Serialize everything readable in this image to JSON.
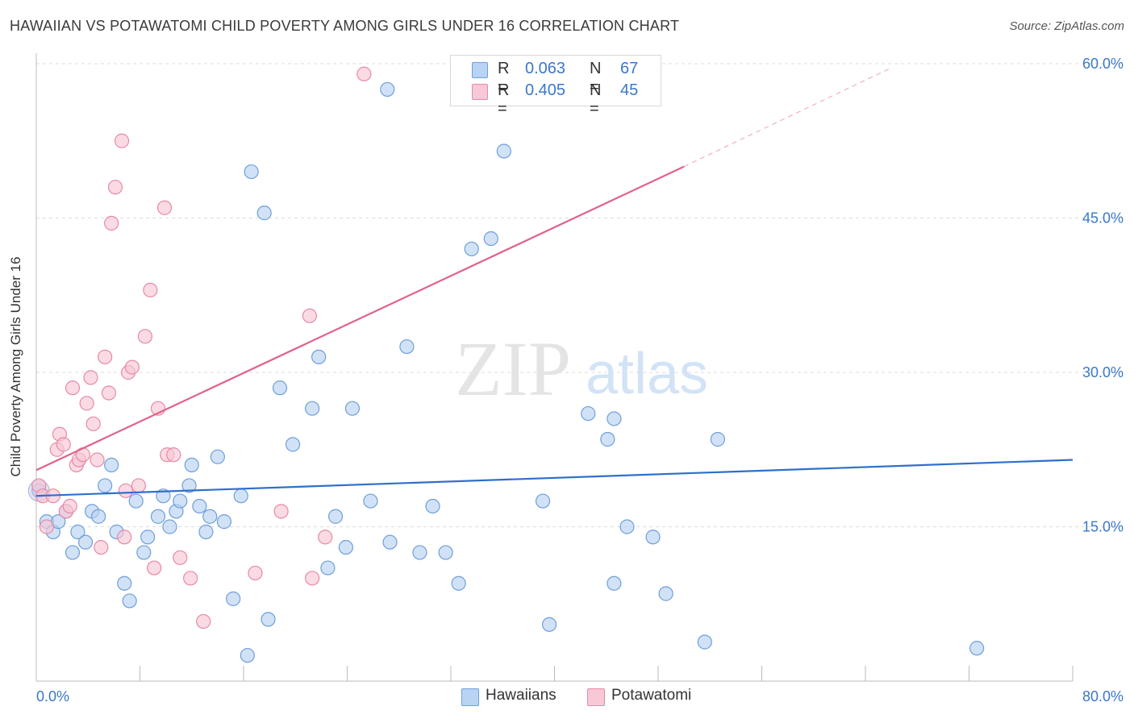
{
  "title": "HAWAIIAN VS POTAWATOMI CHILD POVERTY AMONG GIRLS UNDER 16 CORRELATION CHART",
  "source": "Source: ZipAtlas.com",
  "watermark": {
    "zip": "ZIP",
    "atlas": "atlas"
  },
  "legend": {
    "r_label": "R =",
    "n_label": "N =",
    "hawaiians": {
      "r": "0.063",
      "n": "67"
    },
    "potawatomi": {
      "r": "0.405",
      "n": "45"
    }
  },
  "bottom_legend": {
    "hawaiians": "Hawaiians",
    "potawatomi": "Potawatomi"
  },
  "colors": {
    "hawaiians_fill": "#b8d3f3",
    "hawaiians_stroke": "#6f9fd8",
    "hawaiians_line": "#2f6fcc",
    "potawatomi_fill": "#f8c8d6",
    "potawatomi_stroke": "#e889a6",
    "potawatomi_line": "#e0628a",
    "tick_label": "#3a78c9"
  },
  "chart_data": {
    "type": "scatter",
    "title": "HAWAIIAN VS POTAWATOMI CHILD POVERTY AMONG GIRLS UNDER 16 CORRELATION CHART",
    "xlabel": "",
    "ylabel": "Child Poverty Among Girls Under 16",
    "xlim": [
      0,
      80
    ],
    "ylim": [
      0,
      60
    ],
    "x_tick_labels": [
      {
        "value": 0,
        "label": "0.0%"
      },
      {
        "value": 80,
        "label": "80.0%"
      }
    ],
    "y_tick_labels": [
      {
        "value": 15,
        "label": "15.0%"
      },
      {
        "value": 30,
        "label": "30.0%"
      },
      {
        "value": 45,
        "label": "45.0%"
      },
      {
        "value": 60,
        "label": "60.0%"
      }
    ],
    "grid": "horizontal dashed",
    "legend_position": "top-center",
    "series": [
      {
        "name": "Hawaiians",
        "r": 0.063,
        "n": 67,
        "trend": {
          "x": [
            0,
            80
          ],
          "y": [
            18.0,
            21.5
          ]
        },
        "points": [
          [
            0.2,
            18.5
          ],
          [
            0.8,
            15.5
          ],
          [
            1.3,
            14.5
          ],
          [
            1.7,
            15.5
          ],
          [
            2.3,
            16.5
          ],
          [
            2.8,
            12.5
          ],
          [
            3.2,
            14.5
          ],
          [
            3.8,
            13.5
          ],
          [
            4.3,
            16.5
          ],
          [
            4.8,
            16.0
          ],
          [
            5.3,
            19.0
          ],
          [
            5.8,
            21.0
          ],
          [
            6.2,
            14.5
          ],
          [
            6.8,
            9.5
          ],
          [
            7.2,
            7.8
          ],
          [
            7.7,
            17.5
          ],
          [
            8.3,
            12.5
          ],
          [
            8.6,
            14.0
          ],
          [
            9.4,
            16.0
          ],
          [
            9.8,
            18.0
          ],
          [
            10.3,
            15.0
          ],
          [
            10.8,
            16.5
          ],
          [
            11.1,
            17.5
          ],
          [
            11.8,
            19.0
          ],
          [
            12.0,
            21.0
          ],
          [
            12.6,
            17.0
          ],
          [
            13.1,
            14.5
          ],
          [
            13.4,
            16.0
          ],
          [
            14.0,
            21.8
          ],
          [
            14.5,
            15.5
          ],
          [
            15.2,
            8.0
          ],
          [
            15.8,
            18.0
          ],
          [
            16.3,
            2.5
          ],
          [
            16.6,
            49.5
          ],
          [
            17.6,
            45.5
          ],
          [
            17.9,
            6.0
          ],
          [
            18.8,
            28.5
          ],
          [
            19.8,
            23.0
          ],
          [
            21.3,
            26.5
          ],
          [
            21.8,
            31.5
          ],
          [
            22.5,
            11.0
          ],
          [
            23.1,
            16.0
          ],
          [
            23.9,
            13.0
          ],
          [
            24.4,
            26.5
          ],
          [
            25.8,
            17.5
          ],
          [
            27.1,
            57.5
          ],
          [
            27.3,
            13.5
          ],
          [
            28.6,
            32.5
          ],
          [
            29.6,
            12.5
          ],
          [
            30.6,
            17.0
          ],
          [
            31.6,
            12.5
          ],
          [
            32.6,
            9.5
          ],
          [
            33.6,
            42.0
          ],
          [
            35.1,
            43.0
          ],
          [
            36.1,
            51.5
          ],
          [
            39.1,
            17.5
          ],
          [
            39.6,
            5.5
          ],
          [
            42.6,
            26.0
          ],
          [
            44.1,
            23.5
          ],
          [
            44.6,
            9.5
          ],
          [
            44.6,
            25.5
          ],
          [
            45.6,
            15.0
          ],
          [
            47.6,
            14.0
          ],
          [
            48.6,
            8.5
          ],
          [
            51.6,
            3.8
          ],
          [
            52.6,
            23.5
          ],
          [
            72.6,
            3.2
          ]
        ]
      },
      {
        "name": "Potawatomi",
        "r": 0.405,
        "n": 45,
        "trend": {
          "x": [
            0,
            50
          ],
          "y": [
            20.5,
            50.0
          ]
        },
        "trend_extension": {
          "x": [
            50,
            66
          ],
          "y": [
            50.0,
            59.6
          ]
        },
        "points": [
          [
            0.2,
            19.0
          ],
          [
            0.5,
            18.0
          ],
          [
            0.8,
            15.0
          ],
          [
            1.3,
            18.0
          ],
          [
            1.6,
            22.5
          ],
          [
            1.8,
            24.0
          ],
          [
            2.1,
            23.0
          ],
          [
            2.3,
            16.5
          ],
          [
            2.6,
            17.0
          ],
          [
            2.8,
            28.5
          ],
          [
            3.1,
            21.0
          ],
          [
            3.3,
            21.5
          ],
          [
            3.6,
            22.0
          ],
          [
            3.9,
            27.0
          ],
          [
            4.2,
            29.5
          ],
          [
            4.4,
            25.0
          ],
          [
            4.7,
            21.5
          ],
          [
            5.0,
            13.0
          ],
          [
            5.3,
            31.5
          ],
          [
            5.6,
            28.0
          ],
          [
            5.8,
            44.5
          ],
          [
            6.1,
            48.0
          ],
          [
            6.6,
            52.5
          ],
          [
            6.8,
            14.0
          ],
          [
            6.9,
            18.5
          ],
          [
            7.1,
            30.0
          ],
          [
            7.4,
            30.5
          ],
          [
            7.9,
            19.0
          ],
          [
            8.4,
            33.5
          ],
          [
            8.8,
            38.0
          ],
          [
            9.1,
            11.0
          ],
          [
            9.4,
            26.5
          ],
          [
            9.9,
            46.0
          ],
          [
            10.1,
            22.0
          ],
          [
            10.6,
            22.0
          ],
          [
            11.1,
            12.0
          ],
          [
            11.9,
            10.0
          ],
          [
            12.9,
            5.8
          ],
          [
            16.9,
            10.5
          ],
          [
            18.9,
            16.5
          ],
          [
            21.1,
            35.5
          ],
          [
            21.3,
            10.0
          ],
          [
            22.3,
            14.0
          ],
          [
            25.3,
            59.0
          ],
          [
            39.8,
            59.5
          ]
        ]
      }
    ]
  }
}
